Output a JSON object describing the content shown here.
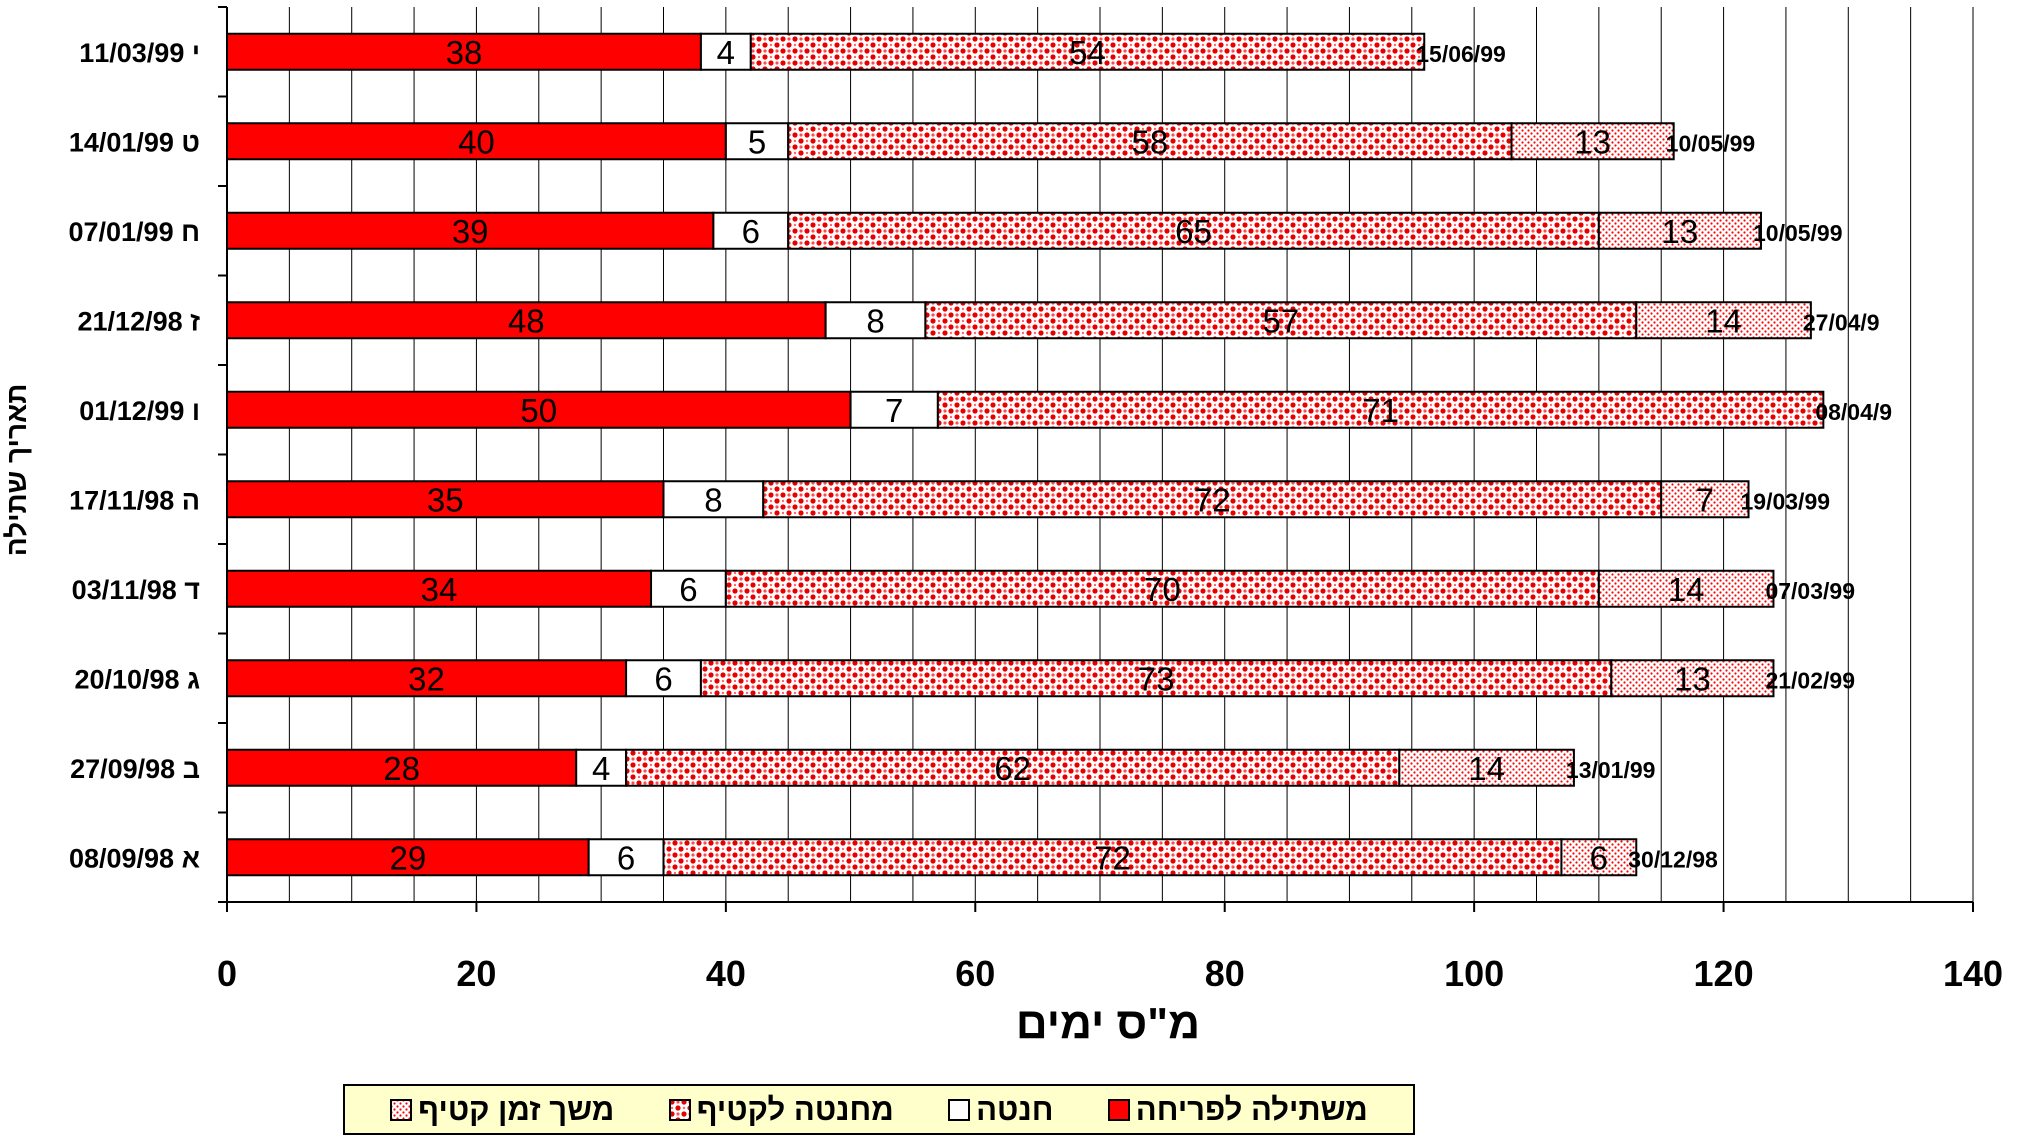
{
  "chart_data": {
    "type": "bar",
    "orientation": "horizontal",
    "stacked": true,
    "title": "",
    "xlabel": "מ\"ס ימים",
    "ylabel": "תאריך שתילה",
    "xlim": [
      0,
      140
    ],
    "x_ticks": [
      "0",
      "20",
      "40",
      "60",
      "80",
      "100",
      "120",
      "140"
    ],
    "grid": "vertical",
    "legend_position": "bottom",
    "categories": [
      "11/03/99 י",
      "14/01/99 ט",
      "07/01/99 ח",
      "21/12/98 ז",
      "01/12/99 ו",
      "17/11/98 ה",
      "03/11/98 ד",
      "20/10/98 ג",
      "27/09/98 ב",
      "08/09/98 א"
    ],
    "end_labels": [
      "15/06/99",
      "10/05/99",
      "10/05/99",
      "27/04/9",
      "08/04/9",
      "19/03/99",
      "07/03/99",
      "21/02/99",
      "13/01/99",
      "30/12/98"
    ],
    "series": [
      {
        "name": "משתילה לפריחה",
        "color": "#ff0000",
        "pattern": "solid",
        "values": [
          38,
          40,
          39,
          48,
          50,
          35,
          34,
          32,
          28,
          29
        ]
      },
      {
        "name": "חנטה",
        "color": "#ffffff",
        "pattern": "solid",
        "values": [
          4,
          5,
          6,
          8,
          7,
          8,
          6,
          6,
          4,
          6
        ]
      },
      {
        "name": "מחנטה לקטיף",
        "color": "#ff0000",
        "pattern": "dense-dots",
        "values": [
          54,
          58,
          65,
          57,
          71,
          72,
          70,
          73,
          62,
          72
        ]
      },
      {
        "name": "משך זמן קטיף",
        "color": "#ff0000",
        "pattern": "fine-dots",
        "values": [
          null,
          13,
          13,
          14,
          null,
          7,
          14,
          13,
          14,
          6
        ]
      }
    ]
  }
}
